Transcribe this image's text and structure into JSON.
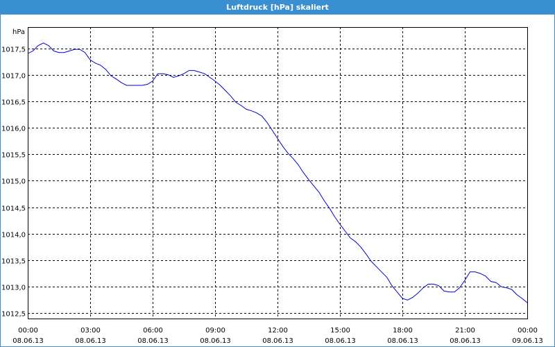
{
  "window": {
    "title": "Luftdruck [hPa] skaliert"
  },
  "chart_data": {
    "type": "line",
    "title": "Luftdruck [hPa] skaliert",
    "ylabel": "hPa",
    "xlabel": "",
    "ylim": [
      1012.4,
      1017.9
    ],
    "xlim": [
      0,
      24
    ],
    "grid": true,
    "line_color": "#0000cc",
    "y_ticks": [
      "1012,5",
      "1013,0",
      "1013,5",
      "1014,0",
      "1014,5",
      "1015,0",
      "1015,5",
      "1016,0",
      "1016,5",
      "1017,0",
      "1017,5"
    ],
    "y_tick_values": [
      1012.5,
      1013.0,
      1013.5,
      1014.0,
      1014.5,
      1015.0,
      1015.5,
      1016.0,
      1016.5,
      1017.0,
      1017.5
    ],
    "x_ticks": [
      {
        "time": "00:00",
        "date": "08.06.13"
      },
      {
        "time": "03:00",
        "date": "08.06.13"
      },
      {
        "time": "06:00",
        "date": "08.06.13"
      },
      {
        "time": "09:00",
        "date": "08.06.13"
      },
      {
        "time": "12:00",
        "date": "08.06.13"
      },
      {
        "time": "15:00",
        "date": "08.06.13"
      },
      {
        "time": "18:00",
        "date": "08.06.13"
      },
      {
        "time": "21:00",
        "date": "08.06.13"
      },
      {
        "time": "00:00",
        "date": "09.06.13"
      }
    ],
    "x_tick_values": [
      0,
      3,
      6,
      9,
      12,
      15,
      18,
      21,
      24
    ],
    "series": [
      {
        "values": [
          [
            0.0,
            1017.4
          ],
          [
            0.25,
            1017.45
          ],
          [
            0.5,
            1017.55
          ],
          [
            0.75,
            1017.6
          ],
          [
            1.0,
            1017.55
          ],
          [
            1.25,
            1017.45
          ],
          [
            1.5,
            1017.42
          ],
          [
            1.75,
            1017.42
          ],
          [
            2.0,
            1017.45
          ],
          [
            2.25,
            1017.48
          ],
          [
            2.5,
            1017.48
          ],
          [
            2.75,
            1017.42
          ],
          [
            3.0,
            1017.28
          ],
          [
            3.25,
            1017.22
          ],
          [
            3.5,
            1017.18
          ],
          [
            3.75,
            1017.1
          ],
          [
            4.0,
            1016.98
          ],
          [
            4.25,
            1016.92
          ],
          [
            4.5,
            1016.85
          ],
          [
            4.75,
            1016.8
          ],
          [
            5.0,
            1016.8
          ],
          [
            5.25,
            1016.8
          ],
          [
            5.5,
            1016.8
          ],
          [
            5.75,
            1016.82
          ],
          [
            6.0,
            1016.88
          ],
          [
            6.25,
            1017.02
          ],
          [
            6.5,
            1017.02
          ],
          [
            6.75,
            1017.0
          ],
          [
            7.0,
            1016.95
          ],
          [
            7.25,
            1016.98
          ],
          [
            7.5,
            1017.02
          ],
          [
            7.75,
            1017.08
          ],
          [
            8.0,
            1017.08
          ],
          [
            8.25,
            1017.05
          ],
          [
            8.5,
            1017.02
          ],
          [
            8.75,
            1016.95
          ],
          [
            9.0,
            1016.88
          ],
          [
            9.25,
            1016.8
          ],
          [
            9.5,
            1016.7
          ],
          [
            9.75,
            1016.6
          ],
          [
            10.0,
            1016.48
          ],
          [
            10.25,
            1016.42
          ],
          [
            10.5,
            1016.35
          ],
          [
            10.75,
            1016.32
          ],
          [
            11.0,
            1016.28
          ],
          [
            11.25,
            1016.22
          ],
          [
            11.5,
            1016.1
          ],
          [
            11.75,
            1015.95
          ],
          [
            12.0,
            1015.8
          ],
          [
            12.25,
            1015.65
          ],
          [
            12.5,
            1015.52
          ],
          [
            12.75,
            1015.42
          ],
          [
            13.0,
            1015.3
          ],
          [
            13.25,
            1015.15
          ],
          [
            13.5,
            1015.02
          ],
          [
            13.75,
            1014.9
          ],
          [
            14.0,
            1014.78
          ],
          [
            14.25,
            1014.62
          ],
          [
            14.5,
            1014.48
          ],
          [
            14.75,
            1014.32
          ],
          [
            15.0,
            1014.18
          ],
          [
            15.25,
            1014.05
          ],
          [
            15.5,
            1013.92
          ],
          [
            15.75,
            1013.85
          ],
          [
            16.0,
            1013.75
          ],
          [
            16.25,
            1013.62
          ],
          [
            16.5,
            1013.48
          ],
          [
            16.75,
            1013.38
          ],
          [
            17.0,
            1013.28
          ],
          [
            17.25,
            1013.18
          ],
          [
            17.5,
            1013.02
          ],
          [
            17.75,
            1012.9
          ],
          [
            18.0,
            1012.78
          ],
          [
            18.25,
            1012.75
          ],
          [
            18.5,
            1012.8
          ],
          [
            18.75,
            1012.88
          ],
          [
            19.0,
            1012.98
          ],
          [
            19.25,
            1013.05
          ],
          [
            19.5,
            1013.05
          ],
          [
            19.75,
            1013.02
          ],
          [
            20.0,
            1012.92
          ],
          [
            20.25,
            1012.9
          ],
          [
            20.5,
            1012.9
          ],
          [
            20.75,
            1012.98
          ],
          [
            21.0,
            1013.12
          ],
          [
            21.25,
            1013.28
          ],
          [
            21.5,
            1013.28
          ],
          [
            21.75,
            1013.25
          ],
          [
            22.0,
            1013.2
          ],
          [
            22.25,
            1013.1
          ],
          [
            22.5,
            1013.08
          ],
          [
            22.75,
            1013.0
          ],
          [
            23.0,
            1012.98
          ],
          [
            23.25,
            1012.95
          ],
          [
            23.5,
            1012.85
          ],
          [
            23.75,
            1012.78
          ],
          [
            24.0,
            1012.7
          ]
        ]
      }
    ]
  }
}
